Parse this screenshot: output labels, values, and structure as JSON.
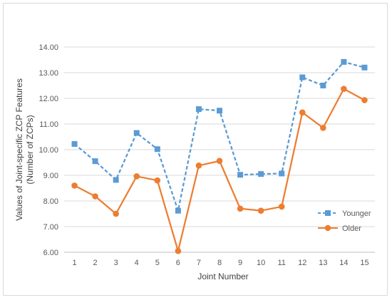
{
  "chart_data": {
    "type": "line",
    "title": "",
    "xlabel": "Joint Number",
    "ylabel_lines": [
      "Values of Joint-specific ZCP Features",
      "(Number of ZCPs)"
    ],
    "categories": [
      "1",
      "2",
      "3",
      "4",
      "5",
      "6",
      "7",
      "8",
      "9",
      "10",
      "11",
      "12",
      "13",
      "14",
      "15"
    ],
    "ylim": [
      6.0,
      14.0
    ],
    "yticks": [
      "6.00",
      "7.00",
      "8.00",
      "9.00",
      "10.00",
      "11.00",
      "12.00",
      "13.00",
      "14.00"
    ],
    "grid": true,
    "legend_position": "right",
    "series": [
      {
        "name": "Younger",
        "color": "#5b9bd5",
        "line_style": "dashed",
        "marker": "square",
        "values": [
          10.22,
          9.55,
          8.82,
          10.65,
          10.02,
          7.62,
          11.58,
          11.52,
          9.02,
          9.05,
          9.07,
          12.82,
          12.5,
          13.42,
          13.2
        ]
      },
      {
        "name": "Older",
        "color": "#ed7d31",
        "line_style": "solid",
        "marker": "circle",
        "values": [
          8.6,
          8.18,
          7.5,
          8.96,
          8.8,
          6.05,
          9.38,
          9.56,
          7.7,
          7.62,
          7.78,
          11.45,
          10.85,
          12.37,
          11.93
        ]
      }
    ]
  }
}
